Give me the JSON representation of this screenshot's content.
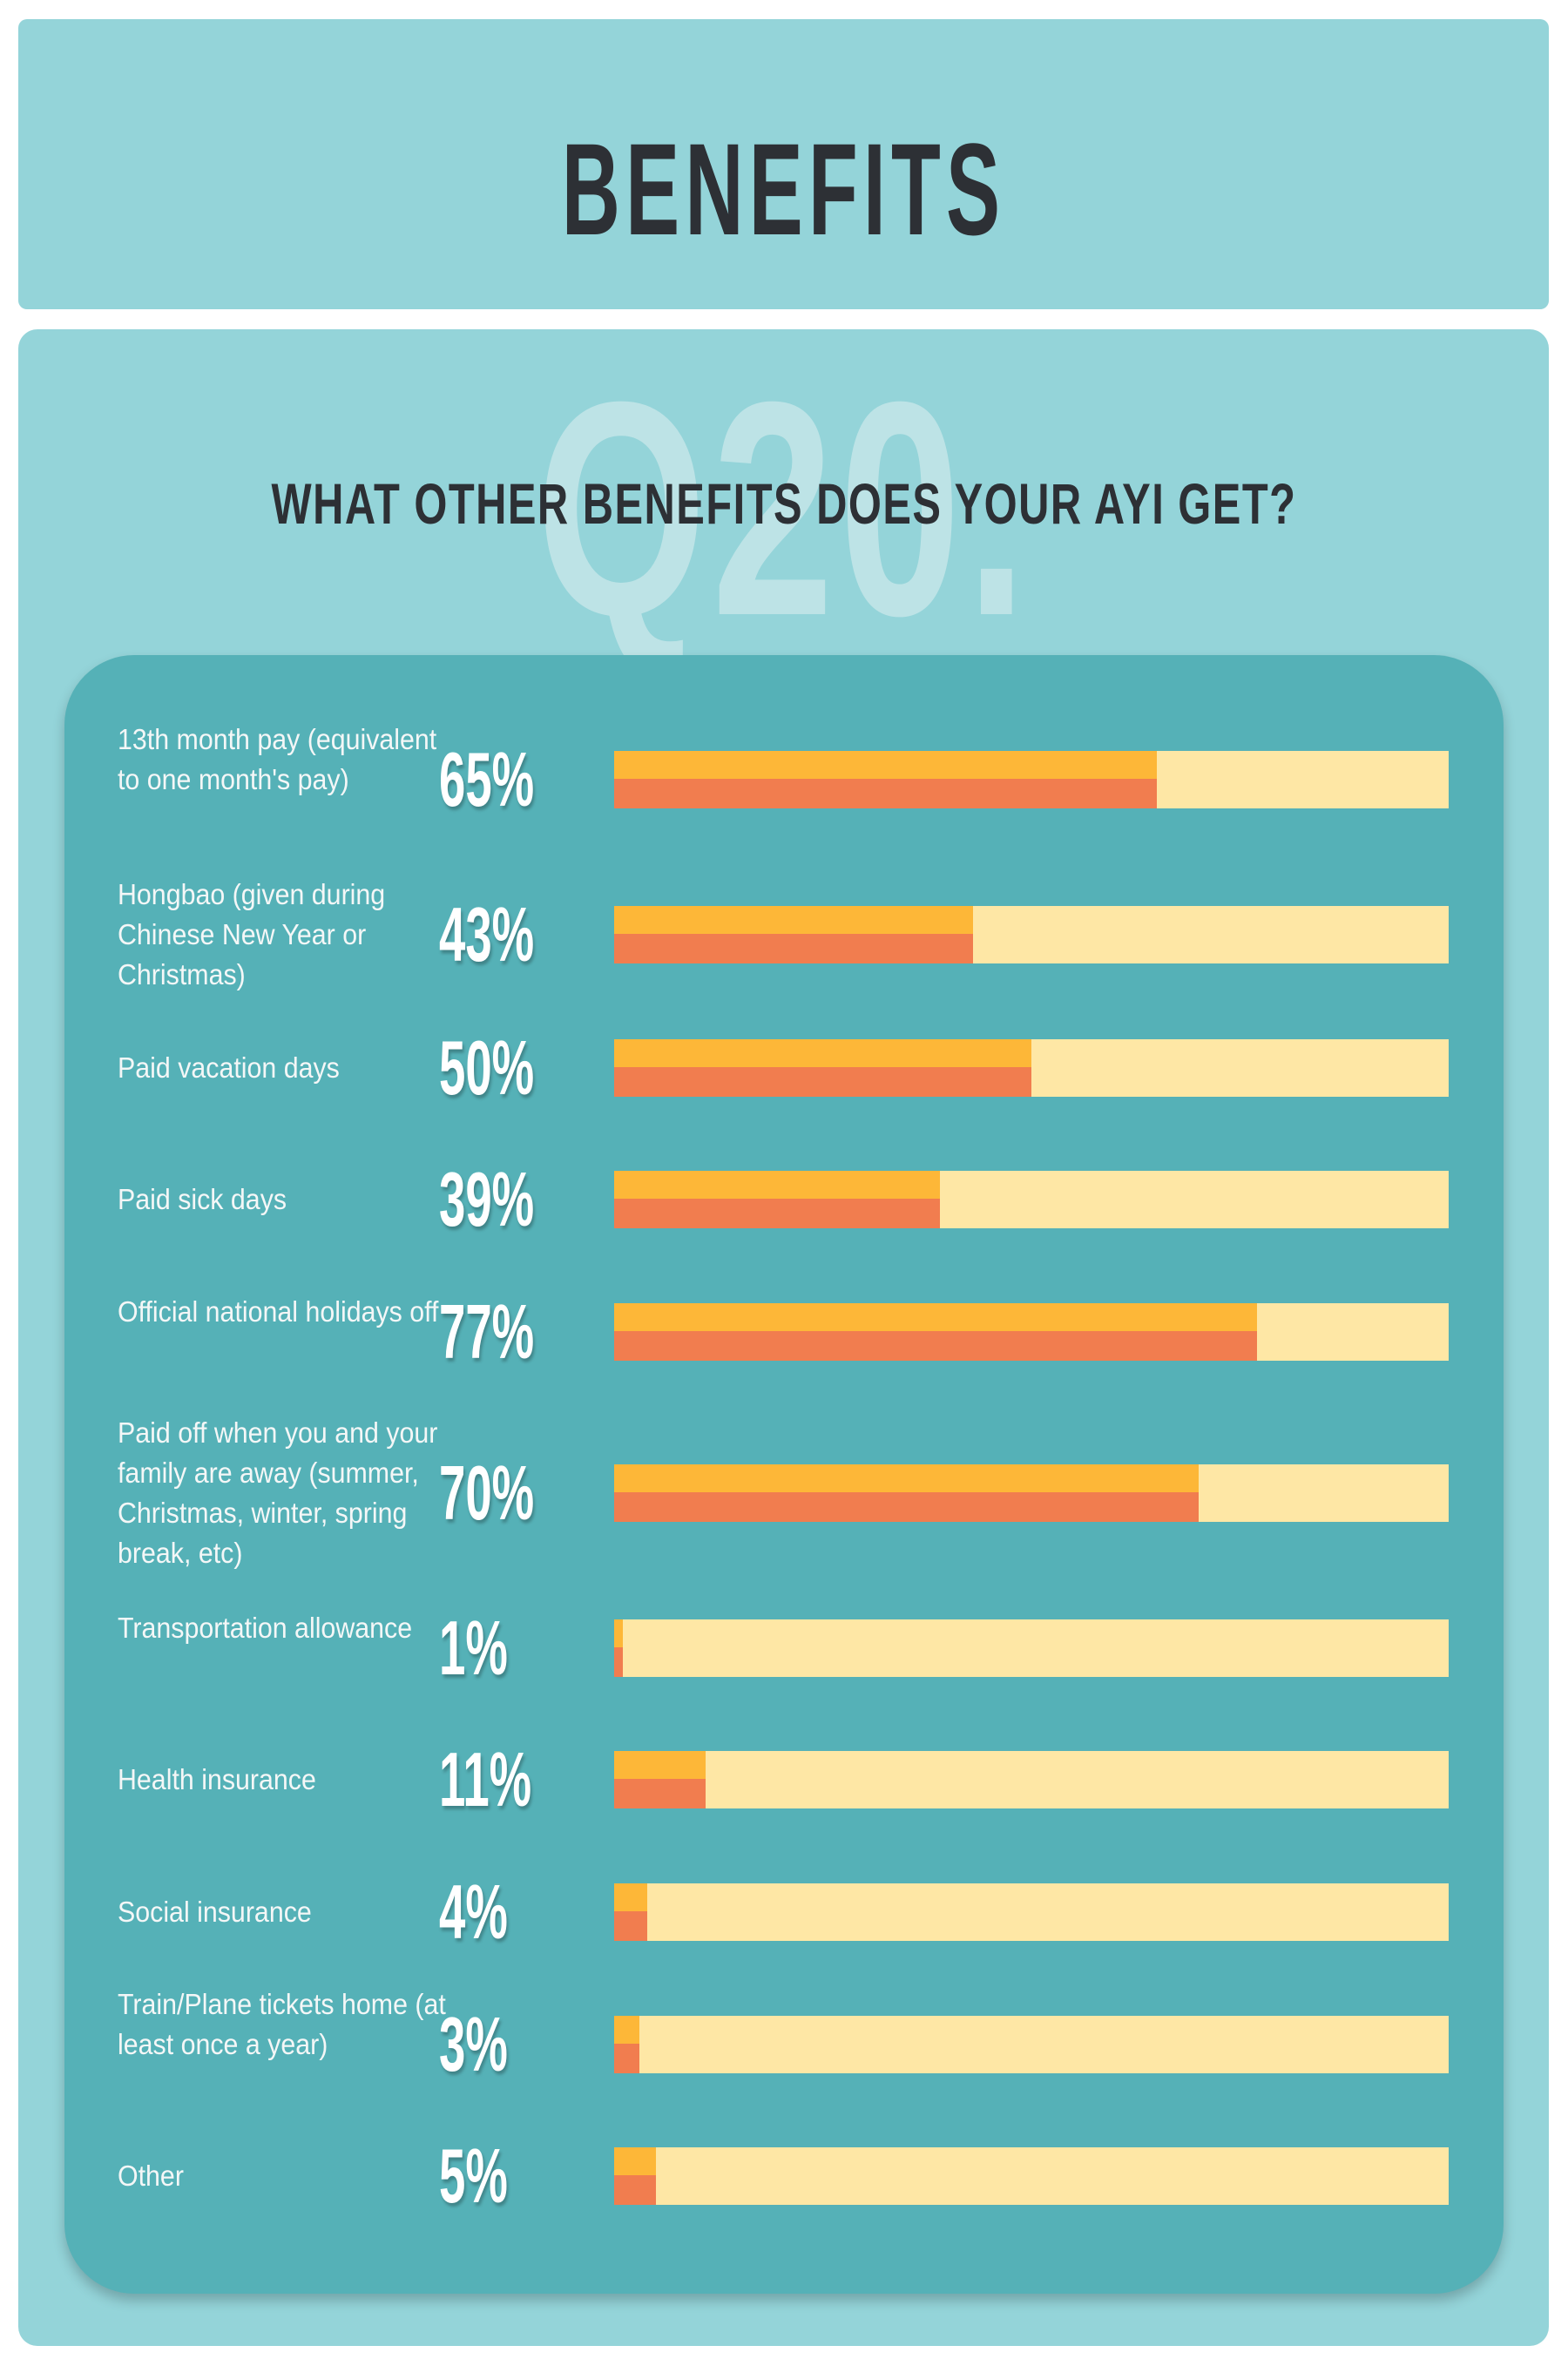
{
  "header": {
    "title": "BENEFITS"
  },
  "question": {
    "number": "Q20.",
    "text": "WHAT OTHER BENEFITS DOES YOUR AYI GET?"
  },
  "colors": {
    "fill_top": "#fdb738",
    "fill_bottom": "#f17d4f",
    "track": "#fee7a5",
    "panel": "#55b1b7",
    "background": "#94d4d9"
  },
  "chart_data": {
    "type": "bar",
    "orientation": "horizontal",
    "title": "WHAT OTHER BENEFITS DOES YOUR AYI GET?",
    "xlabel": "",
    "ylabel": "",
    "xlim": [
      0,
      100
    ],
    "unit": "%",
    "grid": false,
    "categories": [
      "13th month pay (equivalent to one month's pay)",
      "Hongbao (given during Chinese New Year or Christmas)",
      "Paid vacation days",
      "Paid sick days",
      "Official national holidays off",
      "Paid off when you and your family are away (summer, Christmas, winter, spring break, etc)",
      "Transportation allowance",
      "Health insurance",
      "Social insurance",
      "Train/Plane tickets home (at least once a year)",
      "Other"
    ],
    "values": [
      65,
      43,
      50,
      39,
      77,
      70,
      1,
      11,
      4,
      3,
      5
    ],
    "labels": [
      "65%",
      "43%",
      "50%",
      "39%",
      "77%",
      "70%",
      "1%",
      "11%",
      "4%",
      "3%",
      "5%"
    ]
  }
}
